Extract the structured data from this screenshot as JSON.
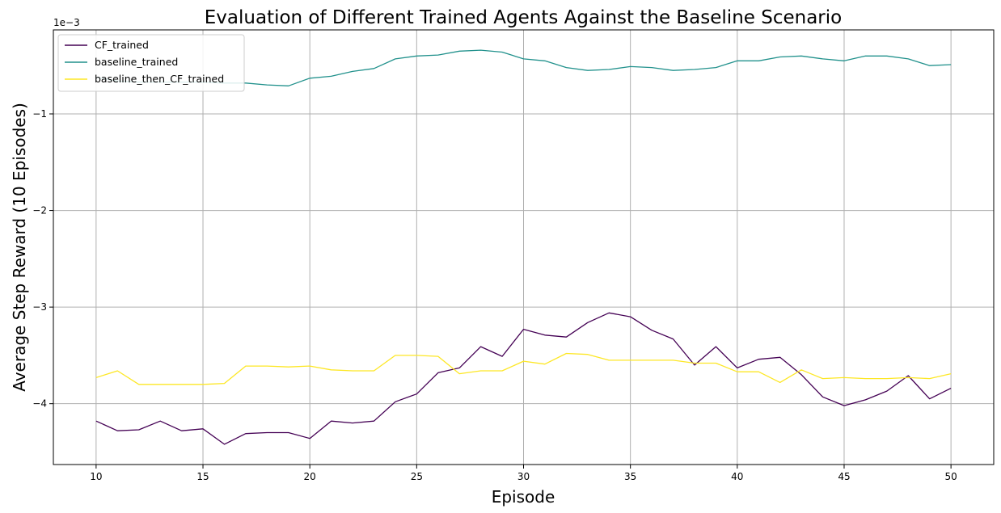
{
  "chart_data": {
    "type": "line",
    "title": "Evaluation of Different Trained Agents Against the Baseline Scenario",
    "xlabel": "Episode",
    "ylabel": "Average Step Reward (10 Episodes)",
    "offset_text": "1e−3",
    "xlim": [
      8,
      52
    ],
    "ylim": [
      -4.63,
      -0.13
    ],
    "xticks": [
      10,
      15,
      20,
      25,
      30,
      35,
      40,
      45,
      50
    ],
    "yticks": [
      -1,
      -2,
      -3,
      -4
    ],
    "ytick_labels": [
      "−1",
      "−2",
      "−3",
      "−4"
    ],
    "grid": true,
    "legend_position": "upper-left",
    "x": [
      10,
      11,
      12,
      13,
      14,
      15,
      16,
      17,
      18,
      19,
      20,
      21,
      22,
      23,
      24,
      25,
      26,
      27,
      28,
      29,
      30,
      31,
      32,
      33,
      34,
      35,
      36,
      37,
      38,
      39,
      40,
      41,
      42,
      43,
      44,
      45,
      46,
      47,
      48,
      49,
      50
    ],
    "series": [
      {
        "name": "CF_trained",
        "color": "#440154",
        "values": [
          -4.18,
          -4.28,
          -4.27,
          -4.18,
          -4.28,
          -4.26,
          -4.42,
          -4.31,
          -4.3,
          -4.3,
          -4.36,
          -4.18,
          -4.2,
          -4.18,
          -3.98,
          -3.9,
          -3.68,
          -3.63,
          -3.41,
          -3.51,
          -3.23,
          -3.29,
          -3.31,
          -3.16,
          -3.06,
          -3.1,
          -3.24,
          -3.33,
          -3.6,
          -3.41,
          -3.63,
          -3.54,
          -3.52,
          -3.7,
          -3.93,
          -4.02,
          -3.96,
          -3.87,
          -3.71,
          -3.95,
          -3.84
        ]
      },
      {
        "name": "baseline_trained",
        "color": "#21918c",
        "values": [
          -0.62,
          -0.66,
          -0.67,
          -0.67,
          -0.67,
          -0.67,
          -0.68,
          -0.68,
          -0.7,
          -0.71,
          -0.63,
          -0.61,
          -0.56,
          -0.53,
          -0.43,
          -0.4,
          -0.39,
          -0.35,
          -0.34,
          -0.36,
          -0.43,
          -0.45,
          -0.52,
          -0.55,
          -0.54,
          -0.51,
          -0.52,
          -0.55,
          -0.54,
          -0.52,
          -0.45,
          -0.45,
          -0.41,
          -0.4,
          -0.43,
          -0.45,
          -0.4,
          -0.4,
          -0.43,
          -0.5,
          -0.49
        ]
      },
      {
        "name": "baseline_then_CF_trained",
        "color": "#fde725",
        "values": [
          -3.73,
          -3.66,
          -3.8,
          -3.8,
          -3.8,
          -3.8,
          -3.79,
          -3.61,
          -3.61,
          -3.62,
          -3.61,
          -3.65,
          -3.66,
          -3.66,
          -3.5,
          -3.5,
          -3.51,
          -3.69,
          -3.66,
          -3.66,
          -3.56,
          -3.59,
          -3.48,
          -3.49,
          -3.55,
          -3.55,
          -3.55,
          -3.55,
          -3.58,
          -3.58,
          -3.67,
          -3.67,
          -3.78,
          -3.65,
          -3.74,
          -3.73,
          -3.74,
          -3.74,
          -3.73,
          -3.74,
          -3.69
        ]
      }
    ]
  }
}
